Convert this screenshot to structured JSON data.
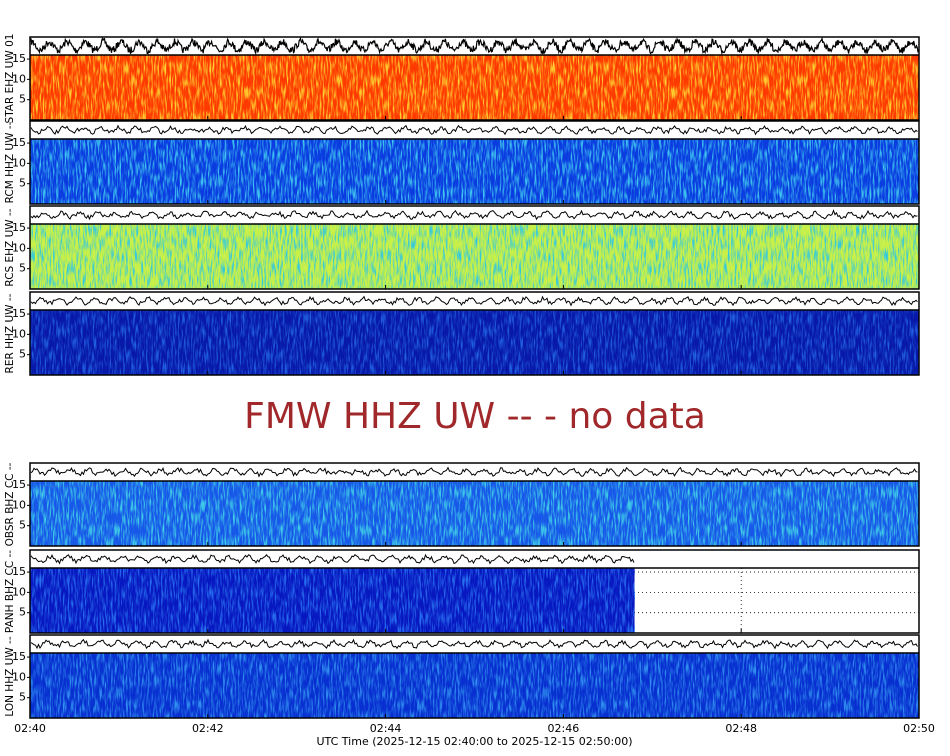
{
  "chart_data": [
    {
      "type": "spectrogram",
      "ylabel": "STAR EHZ UW 01",
      "ylim": [
        0,
        16
      ],
      "yticks": [
        5,
        10,
        15
      ],
      "color": "#ff3a00",
      "accent_color": "#ffd030",
      "grid": true
    },
    {
      "type": "spectrogram",
      "ylabel": "RCM HHZ UW --",
      "ylim": [
        0,
        16
      ],
      "yticks": [
        5,
        10,
        15
      ],
      "color": "#0a3ce0",
      "accent_color": "#40c8f0",
      "grid": true
    },
    {
      "type": "spectrogram",
      "ylabel": "RCS EHZ UW --",
      "ylim": [
        0,
        16
      ],
      "yticks": [
        5,
        10,
        15
      ],
      "color": "#c8f048",
      "accent_color": "#30c8e0",
      "grid": true
    },
    {
      "type": "spectrogram",
      "ylabel": "RER HHZ UW --",
      "ylim": [
        0,
        16
      ],
      "yticks": [
        5,
        10,
        15
      ],
      "color": "#0818a8",
      "accent_color": "#2060e0",
      "grid": true
    },
    {
      "type": "message",
      "text": "FMW HHZ UW -- - no data",
      "color": "#a0282a"
    },
    {
      "type": "spectrogram",
      "ylabel": "OBSR BHZ CC --",
      "ylim": [
        0,
        16
      ],
      "yticks": [
        5,
        10,
        15
      ],
      "color": "#1858e8",
      "accent_color": "#40d0e8",
      "grid": true
    },
    {
      "type": "spectrogram",
      "ylabel": "PANH BHZ CC --",
      "ylim": [
        0,
        16
      ],
      "yticks": [
        5,
        10,
        15
      ],
      "color": "#0818c0",
      "accent_color": "#2870f0",
      "grid": true,
      "data_end": "02:46:48"
    },
    {
      "type": "spectrogram",
      "ylabel": "LON HHZ UW --",
      "ylim": [
        0,
        16
      ],
      "yticks": [
        5,
        10,
        15
      ],
      "color": "#0830d0",
      "accent_color": "#3090f0",
      "grid": true,
      "xlim": [
        "02:40",
        "02:50"
      ],
      "xticks": [
        "02:40",
        "02:42",
        "02:44",
        "02:46",
        "02:48",
        "02:50"
      ],
      "xlabel": "UTC Time (2025-12-15 02:40:00 to 2025-12-15 02:50:00)"
    }
  ]
}
